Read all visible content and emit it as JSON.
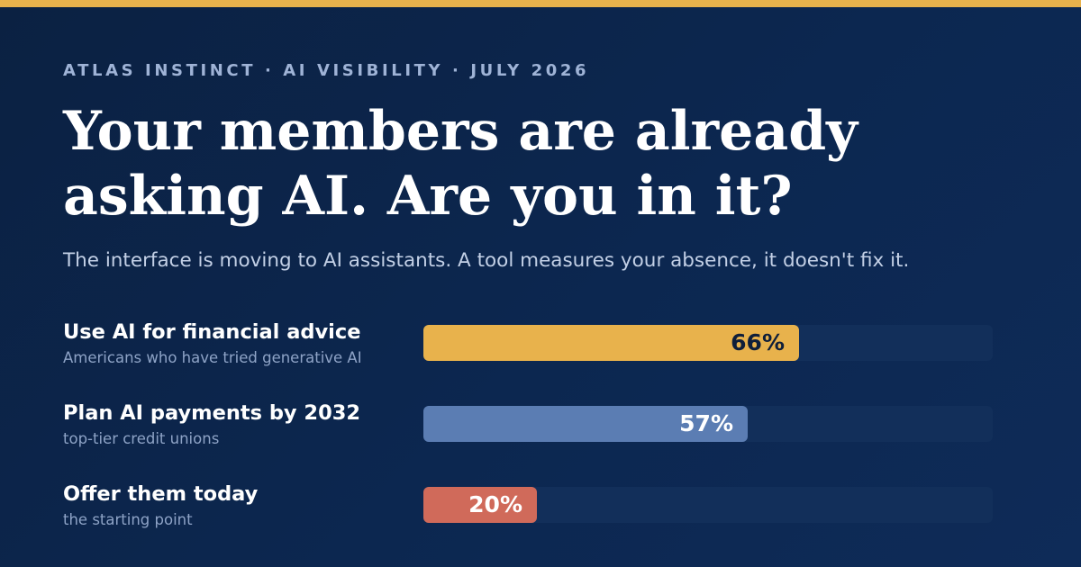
{
  "header": {
    "eyebrow": "ATLAS INSTINCT · AI VISIBILITY · JULY 2026",
    "headline_line1": "Your members are already",
    "headline_line2": "asking AI. Are you in it?",
    "subtitle": "The interface is moving to AI assistants. A tool measures your absence, it doesn't fix it."
  },
  "colors": {
    "accent": "#e8b24c",
    "background": "#0c2750",
    "track": "#122f5a"
  },
  "chart_data": {
    "type": "bar",
    "orientation": "horizontal",
    "xlim": [
      0,
      100
    ],
    "grid": false,
    "bars": [
      {
        "label": "Use AI for financial advice",
        "sublabel": "Americans who have tried generative AI",
        "value": 66,
        "value_label": "66%",
        "color": "#e8b24c",
        "text_color": "#0f1f3a"
      },
      {
        "label": "Plan AI payments by 2032",
        "sublabel": "top-tier credit unions",
        "value": 57,
        "value_label": "57%",
        "color": "#5b7db3",
        "text_color": "#ffffff"
      },
      {
        "label": "Offer them today",
        "sublabel": "the starting point",
        "value": 20,
        "value_label": "20%",
        "color": "#d06a5a",
        "text_color": "#ffffff"
      }
    ]
  }
}
